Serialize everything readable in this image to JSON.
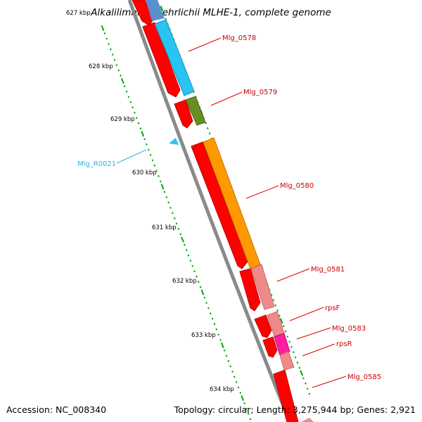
{
  "title": "Alkalilimnicola ehrlichii MLHE-1, complete genome",
  "accession": "Accession: NC_008340",
  "summary": "Topology: circular; Length: 3,275,944 bp; Genes: 2,921",
  "colors": {
    "backbone": "#8a8a8a",
    "strand_red": "#ff0000",
    "cyan": "#29c4f2",
    "olive": "#6b8e23",
    "orange": "#ff9900",
    "pink": "#f08a8a",
    "magenta": "#ff1fa0",
    "steel_blue": "#5b8fcf",
    "tick_green": "#00aa00",
    "label_red": "#cc0000",
    "label_cyan": "#29b6e8"
  },
  "kbp_labels": [
    "627 kbp",
    "628 kbp",
    "629 kbp",
    "630 kbp",
    "631 kbp",
    "632 kbp",
    "633 kbp",
    "634 kbp"
  ],
  "gene_labels": [
    {
      "text": "Mlg_0578",
      "color": "label_red"
    },
    {
      "text": "Mlg_0579",
      "color": "label_red"
    },
    {
      "text": "Mlg_R0021",
      "color": "label_cyan"
    },
    {
      "text": "Mlg_0580",
      "color": "label_red"
    },
    {
      "text": "Mlg_0581",
      "color": "label_red"
    },
    {
      "text": "rpsF",
      "color": "label_red"
    },
    {
      "text": "Mlg_0583",
      "color": "label_red"
    },
    {
      "text": "rpsR",
      "color": "label_red"
    },
    {
      "text": "Mlg_0585",
      "color": "label_red"
    }
  ]
}
